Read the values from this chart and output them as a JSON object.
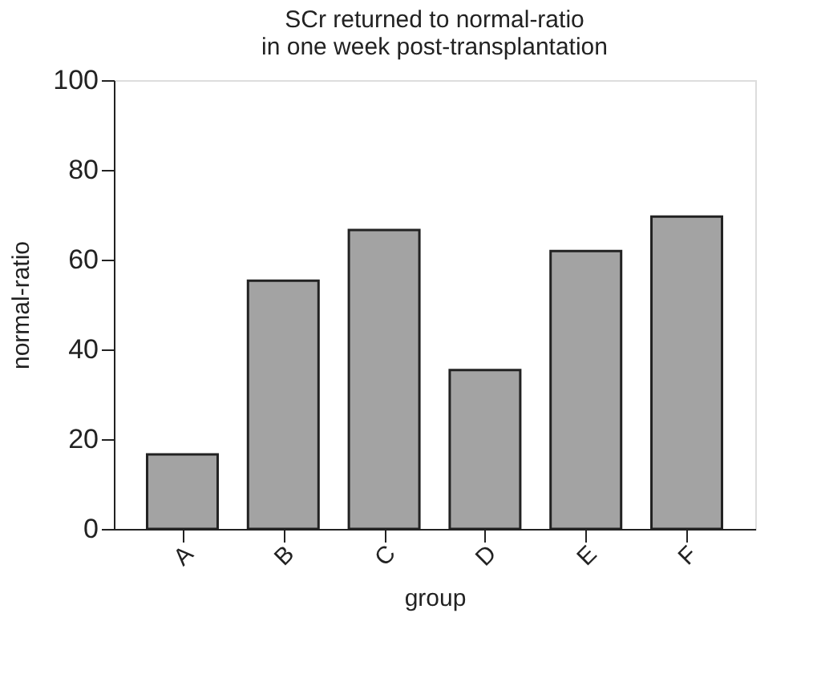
{
  "chart_data": {
    "type": "bar",
    "title": [
      "SCr returned to normal-ratio",
      "in one week post-transplantation"
    ],
    "xlabel": "group",
    "ylabel": "normal-ratio",
    "categories": [
      "A",
      "B",
      "C",
      "D",
      "E",
      "F"
    ],
    "values": [
      16.6,
      55.3,
      66.6,
      35.4,
      61.9,
      69.6
    ],
    "color": "#a3a3a3",
    "ylim": [
      0,
      100
    ],
    "yticks": [
      0,
      20,
      40,
      60,
      80,
      100
    ],
    "grid": false
  }
}
